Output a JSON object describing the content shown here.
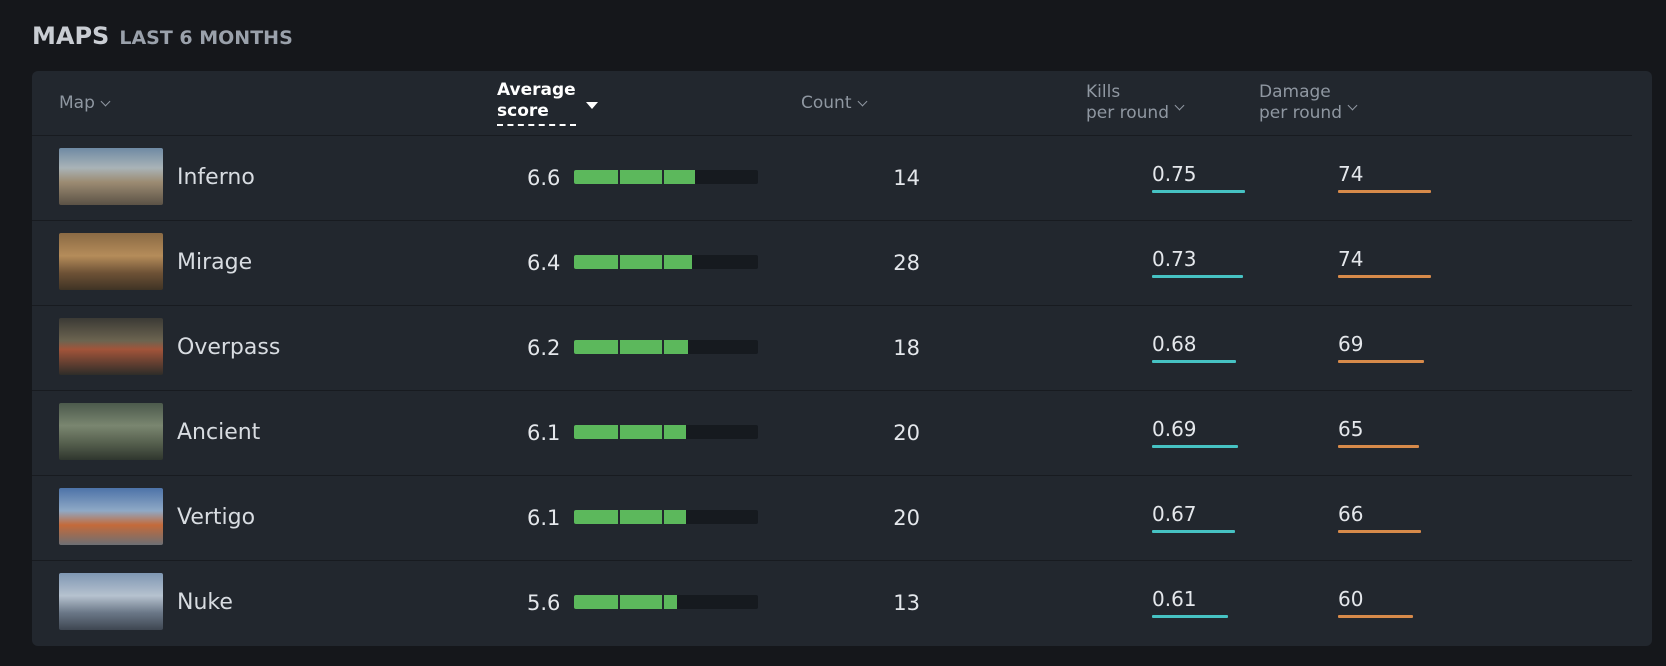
{
  "heading": {
    "title": "MAPS",
    "subtitle": "LAST 6 MONTHS"
  },
  "columns": {
    "map": "Map",
    "score_line1": "Average",
    "score_line2": "score",
    "count": "Count",
    "kills_line1": "Kills",
    "kills_line2": "per round",
    "damage_line1": "Damage",
    "damage_line2": "per round"
  },
  "colors": {
    "score_bar": "#5cb85c",
    "kills_line": "#46c2c3",
    "damage_line": "#d78a4a"
  },
  "score_max": 10,
  "rows": [
    {
      "map": "Inferno",
      "score": "6.6",
      "score_value": 6.6,
      "count": "14",
      "kills": "0.75",
      "kills_value": 0.75,
      "damage": "74",
      "damage_value": 74
    },
    {
      "map": "Mirage",
      "score": "6.4",
      "score_value": 6.4,
      "count": "28",
      "kills": "0.73",
      "kills_value": 0.73,
      "damage": "74",
      "damage_value": 74
    },
    {
      "map": "Overpass",
      "score": "6.2",
      "score_value": 6.2,
      "count": "18",
      "kills": "0.68",
      "kills_value": 0.68,
      "damage": "69",
      "damage_value": 69
    },
    {
      "map": "Ancient",
      "score": "6.1",
      "score_value": 6.1,
      "count": "20",
      "kills": "0.69",
      "kills_value": 0.69,
      "damage": "65",
      "damage_value": 65
    },
    {
      "map": "Vertigo",
      "score": "6.1",
      "score_value": 6.1,
      "count": "20",
      "kills": "0.67",
      "kills_value": 0.67,
      "damage": "66",
      "damage_value": 66
    },
    {
      "map": "Nuke",
      "score": "5.6",
      "score_value": 5.6,
      "count": "13",
      "kills": "0.61",
      "kills_value": 0.61,
      "damage": "60",
      "damage_value": 60
    }
  ]
}
